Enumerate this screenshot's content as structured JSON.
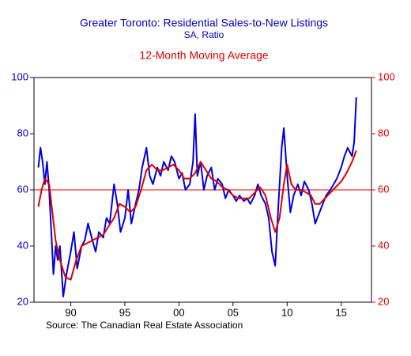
{
  "chart_data": {
    "type": "line",
    "title": "Greater Toronto: Residential Sales-to-New Listings",
    "subtitle": "SA, Ratio",
    "source": "Source:  The Canadian Real Estate Association",
    "xlim": [
      1986.6,
      2017.8
    ],
    "xticks": [
      {
        "value": 1990,
        "label": "90"
      },
      {
        "value": 1995,
        "label": "95"
      },
      {
        "value": 2000,
        "label": "00"
      },
      {
        "value": 2005,
        "label": "05"
      },
      {
        "value": 2010,
        "label": "10"
      },
      {
        "value": 2015,
        "label": "15"
      }
    ],
    "ylim": [
      20,
      100
    ],
    "yticks": [
      20,
      40,
      60,
      80,
      100
    ],
    "ytick_color": "#0000cc",
    "y2lim": [
      20,
      100
    ],
    "y2ticks": [
      20,
      40,
      60,
      80,
      100
    ],
    "y2tick_color": "#e00000",
    "reference_line": {
      "value": 60,
      "color": "#e00000"
    },
    "series": [
      {
        "color": "#0000dd",
        "x": [
          1987.0,
          1987.2,
          1987.4,
          1987.6,
          1987.8,
          1988.0,
          1988.2,
          1988.4,
          1988.6,
          1988.8,
          1989.0,
          1989.3,
          1989.6,
          1990.0,
          1990.3,
          1990.6,
          1991.0,
          1991.3,
          1991.6,
          1992.0,
          1992.3,
          1992.6,
          1993.0,
          1993.3,
          1993.6,
          1994.0,
          1994.3,
          1994.6,
          1995.0,
          1995.3,
          1995.6,
          1996.0,
          1996.3,
          1996.6,
          1997.0,
          1997.3,
          1997.6,
          1998.0,
          1998.3,
          1998.6,
          1999.0,
          1999.3,
          1999.6,
          2000.0,
          2000.3,
          2000.6,
          2001.0,
          2001.3,
          2001.5,
          2001.7,
          2002.0,
          2002.3,
          2002.6,
          2003.0,
          2003.3,
          2003.6,
          2004.0,
          2004.3,
          2004.6,
          2005.0,
          2005.3,
          2005.6,
          2006.0,
          2006.3,
          2006.6,
          2007.0,
          2007.3,
          2007.6,
          2008.0,
          2008.3,
          2008.6,
          2008.9,
          2009.2,
          2009.5,
          2009.7,
          2010.0,
          2010.3,
          2010.6,
          2011.0,
          2011.3,
          2011.6,
          2012.0,
          2012.3,
          2012.6,
          2013.0,
          2013.3,
          2013.6,
          2014.0,
          2014.3,
          2014.6,
          2015.0,
          2015.3,
          2015.6,
          2016.0,
          2016.2,
          2016.4
        ],
        "values": [
          68,
          75,
          70,
          62,
          70,
          60,
          45,
          30,
          40,
          35,
          40,
          22,
          30,
          38,
          45,
          32,
          40,
          42,
          48,
          42,
          38,
          45,
          43,
          50,
          48,
          62,
          55,
          45,
          50,
          60,
          48,
          55,
          60,
          68,
          75,
          65,
          62,
          68,
          65,
          70,
          67,
          72,
          70,
          64,
          66,
          60,
          62,
          70,
          87,
          65,
          70,
          60,
          65,
          68,
          60,
          64,
          62,
          57,
          60,
          58,
          56,
          58,
          56,
          57,
          55,
          58,
          62,
          58,
          55,
          50,
          38,
          33,
          55,
          75,
          82,
          65,
          52,
          58,
          62,
          58,
          63,
          60,
          55,
          48,
          52,
          55,
          58,
          60,
          62,
          64,
          68,
          72,
          75,
          72,
          77,
          93
        ]
      },
      {
        "name": "12-Month Moving Average",
        "color": "#e00000",
        "axis": "y2",
        "x": [
          1987.0,
          1987.3,
          1987.6,
          1988.0,
          1988.3,
          1988.6,
          1989.0,
          1989.5,
          1990.0,
          1990.5,
          1991.0,
          1991.5,
          1992.0,
          1992.5,
          1993.0,
          1993.5,
          1994.0,
          1994.5,
          1995.0,
          1995.5,
          1996.0,
          1996.5,
          1997.0,
          1997.5,
          1998.0,
          1998.5,
          1999.0,
          1999.5,
          2000.0,
          2000.5,
          2001.0,
          2001.5,
          2002.0,
          2002.5,
          2003.0,
          2003.5,
          2004.0,
          2004.5,
          2005.0,
          2005.5,
          2006.0,
          2006.5,
          2007.0,
          2007.5,
          2008.0,
          2008.5,
          2008.9,
          2009.3,
          2009.7,
          2010.0,
          2010.4,
          2010.8,
          2011.3,
          2011.8,
          2012.2,
          2012.6,
          2013.0,
          2013.5,
          2014.0,
          2014.5,
          2015.0,
          2015.5,
          2016.0,
          2016.4
        ],
        "values": [
          54,
          60,
          64,
          62,
          52,
          42,
          35,
          29,
          28,
          35,
          40,
          41,
          42,
          43,
          44,
          47,
          50,
          55,
          54,
          52,
          54,
          60,
          67,
          69,
          67,
          67,
          68,
          69,
          67,
          64,
          64,
          66,
          70,
          67,
          64,
          63,
          61,
          60,
          58,
          57,
          57,
          57,
          59,
          61,
          58,
          50,
          45,
          50,
          62,
          69,
          62,
          60,
          60,
          59,
          58,
          55,
          55,
          57,
          59,
          61,
          63,
          66,
          70,
          74
        ]
      }
    ]
  }
}
